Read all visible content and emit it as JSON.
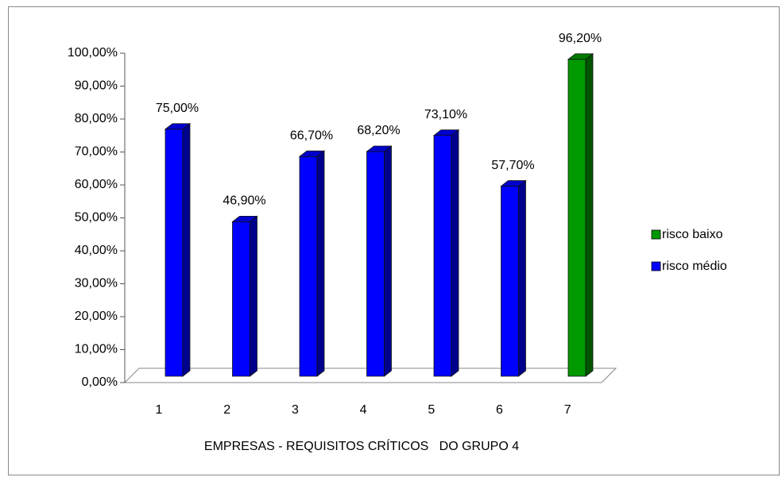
{
  "chart_data": {
    "type": "bar3d",
    "x_label": "EMPRESAS - REQUISITOS CRÍTICOS   DO GRUPO 4",
    "categories": [
      "1",
      "2",
      "3",
      "4",
      "5",
      "6",
      "7"
    ],
    "series": [
      {
        "name": "risco baixo",
        "color": "#009900",
        "values": [
          null,
          null,
          null,
          null,
          null,
          null,
          96.2
        ],
        "value_labels": [
          null,
          null,
          null,
          null,
          null,
          null,
          "96,20%"
        ]
      },
      {
        "name": "risco médio",
        "color": "#0000ff",
        "values": [
          75,
          46.9,
          66.7,
          68.2,
          73.1,
          57.7,
          null
        ],
        "value_labels": [
          "75,00%",
          "46,90%",
          "66,70%",
          "68,20%",
          "73,10%",
          "57,70%",
          null
        ]
      }
    ],
    "ylim": [
      0,
      100
    ],
    "yticks": [
      {
        "value": 0,
        "label": "0,00%"
      },
      {
        "value": 10,
        "label": "10,00%"
      },
      {
        "value": 20,
        "label": "20,00%"
      },
      {
        "value": 30,
        "label": "30,00%"
      },
      {
        "value": 40,
        "label": "40,00%"
      },
      {
        "value": 50,
        "label": "50,00%"
      },
      {
        "value": 60,
        "label": "60,00%"
      },
      {
        "value": 70,
        "label": "70,00%"
      },
      {
        "value": 80,
        "label": "80,00%"
      },
      {
        "value": 90,
        "label": "90,00%"
      },
      {
        "value": 100,
        "label": "100,00%"
      }
    ],
    "legend": "right"
  }
}
